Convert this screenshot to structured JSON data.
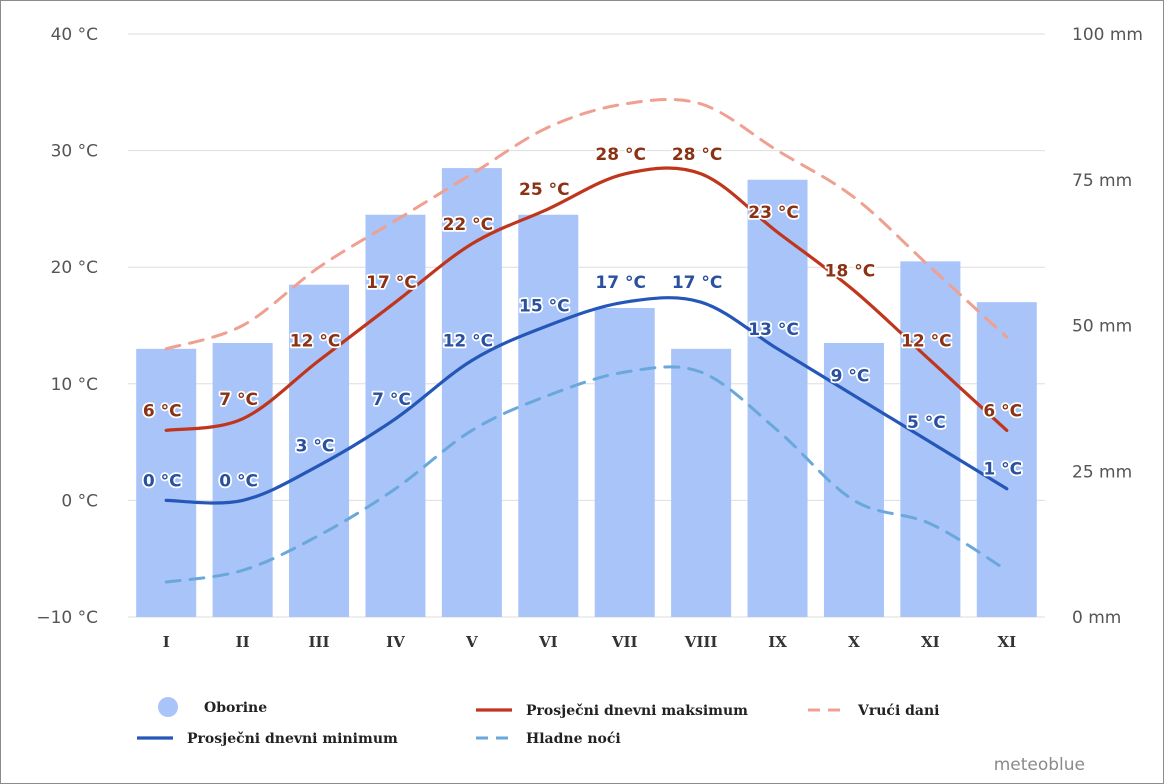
{
  "chart_data": {
    "type": "bar",
    "categories": [
      "I",
      "II",
      "III",
      "IV",
      "V",
      "VI",
      "VII",
      "VIII",
      "IX",
      "X",
      "XI",
      "XI"
    ],
    "left_axis": {
      "range": [
        -10,
        40
      ],
      "ticks": [
        40,
        30,
        20,
        10,
        0,
        -10
      ],
      "tick_labels": [
        "40 °C",
        "30 °C",
        "20 °C",
        "10 °C",
        "0 °C",
        "−10 °C"
      ]
    },
    "right_axis": {
      "range": [
        0,
        100
      ],
      "ticks": [
        100,
        75,
        50,
        25,
        0
      ],
      "tick_labels": [
        "100 mm",
        "75 mm",
        "50 mm",
        "25 mm",
        "0 mm"
      ]
    },
    "grid": true,
    "series": [
      {
        "name": "Oborine",
        "type": "bar",
        "axis": "right",
        "color": "#a8c4f8",
        "values": [
          46,
          47,
          57,
          69,
          77,
          69,
          53,
          46,
          75,
          47,
          61,
          54
        ]
      },
      {
        "name": "Prosječni dnevni maksimum",
        "type": "line",
        "axis": "left",
        "color": "#c0361c",
        "label_color": "#8b3214",
        "values": [
          6,
          7,
          12,
          17,
          22,
          25,
          28,
          28,
          23,
          18,
          12,
          6
        ],
        "labels": [
          "6 °C",
          "7 °C",
          "12 °C",
          "17 °C",
          "22 °C",
          "25 °C",
          "28 °C",
          "28 °C",
          "23 °C",
          "18 °C",
          "12 °C",
          "6 °C"
        ]
      },
      {
        "name": "Prosječni dnevni minimum",
        "type": "line",
        "axis": "left",
        "color": "#2457b8",
        "label_color": "#2a50a0",
        "values": [
          0,
          0,
          3,
          7,
          12,
          15,
          17,
          17,
          13,
          9,
          5,
          1
        ],
        "labels": [
          "0 °C",
          "0 °C",
          "3 °C",
          "7 °C",
          "12 °C",
          "15 °C",
          "17 °C",
          "17 °C",
          "13 °C",
          "9 °C",
          "5 °C",
          "1 °C"
        ]
      },
      {
        "name": "Vrući dani",
        "type": "line",
        "dash": true,
        "axis": "left",
        "color": "#f0a090",
        "values": [
          13,
          15,
          20,
          24,
          28,
          32,
          34,
          34,
          30,
          26,
          20,
          14
        ]
      },
      {
        "name": "Hladne noći",
        "type": "line",
        "dash": true,
        "axis": "left",
        "color": "#6aa8dc",
        "values": [
          -7,
          -6,
          -3,
          1,
          6,
          9,
          11,
          11,
          6,
          0,
          -2,
          -6
        ]
      }
    ],
    "legend": {
      "position": "bottom",
      "items": [
        {
          "label": "Oborine",
          "symbol": "circle",
          "color": "#a8c4f8"
        },
        {
          "label": "Prosječni dnevni maksimum",
          "symbol": "line",
          "color": "#c0361c"
        },
        {
          "label": "Vrući dani",
          "symbol": "dash",
          "color": "#f0a090"
        },
        {
          "label": "Prosječni dnevni minimum",
          "symbol": "line",
          "color": "#2457b8"
        },
        {
          "label": "Hladne noći",
          "symbol": "dash",
          "color": "#6aa8dc"
        }
      ]
    },
    "credit": "meteoblue"
  }
}
